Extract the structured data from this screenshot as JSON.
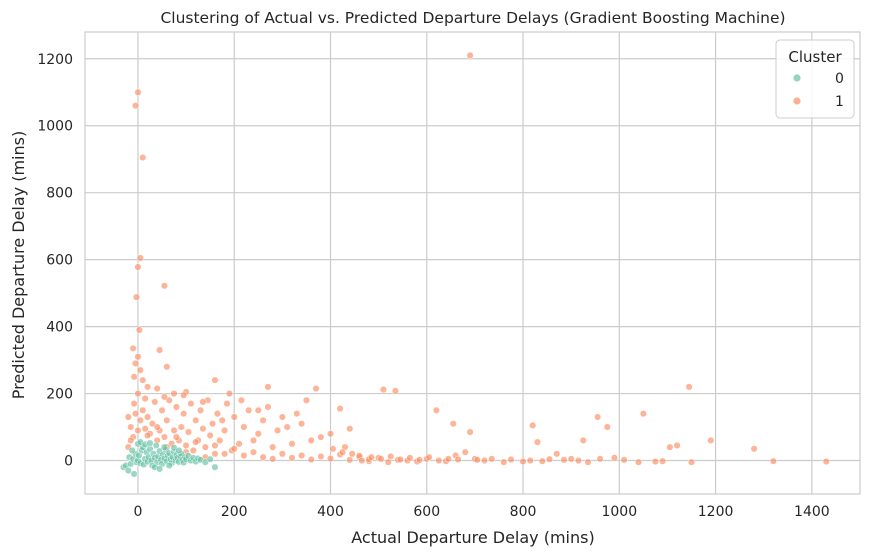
{
  "chart_data": {
    "type": "scatter",
    "title": "Clustering of Actual vs. Predicted Departure Delays (Gradient Boosting Machine)",
    "xlabel": "Actual Departure Delay (mins)",
    "ylabel": "Predicted Departure Delay (mins)",
    "xlim": [
      -110,
      1500
    ],
    "ylim": [
      -100,
      1280
    ],
    "xticks": [
      "0",
      "200",
      "400",
      "600",
      "800",
      "1000",
      "1200",
      "1400"
    ],
    "xtick_values": [
      0,
      200,
      400,
      600,
      800,
      1000,
      1200,
      1400
    ],
    "yticks": [
      "0",
      "200",
      "400",
      "600",
      "800",
      "1000",
      "1200"
    ],
    "ytick_values": [
      0,
      200,
      400,
      600,
      800,
      1000,
      1200
    ],
    "grid": true,
    "legend": {
      "title": "Cluster",
      "placement": "top-right"
    },
    "series": [
      {
        "name": "0",
        "color": "#66c2a5",
        "points": [
          [
            -30,
            -20
          ],
          [
            -25,
            -15
          ],
          [
            -20,
            -30
          ],
          [
            -18,
            10
          ],
          [
            -15,
            -10
          ],
          [
            -10,
            5
          ],
          [
            -8,
            -40
          ],
          [
            -5,
            20
          ],
          [
            -3,
            -5
          ],
          [
            0,
            0
          ],
          [
            2,
            15
          ],
          [
            5,
            -8
          ],
          [
            8,
            30
          ],
          [
            10,
            40
          ],
          [
            12,
            -12
          ],
          [
            15,
            5
          ],
          [
            18,
            25
          ],
          [
            20,
            -3
          ],
          [
            22,
            10
          ],
          [
            25,
            35
          ],
          [
            28,
            0
          ],
          [
            30,
            -15
          ],
          [
            32,
            20
          ],
          [
            35,
            8
          ],
          [
            38,
            45
          ],
          [
            40,
            -5
          ],
          [
            42,
            12
          ],
          [
            45,
            28
          ],
          [
            48,
            2
          ],
          [
            50,
            -10
          ],
          [
            52,
            18
          ],
          [
            55,
            6
          ],
          [
            58,
            32
          ],
          [
            60,
            -2
          ],
          [
            62,
            14
          ],
          [
            65,
            22
          ],
          [
            68,
            4
          ],
          [
            70,
            -8
          ],
          [
            72,
            10
          ],
          [
            75,
            26
          ],
          [
            78,
            0
          ],
          [
            80,
            16
          ],
          [
            82,
            8
          ],
          [
            85,
            -4
          ],
          [
            88,
            12
          ],
          [
            90,
            20
          ],
          [
            92,
            2
          ],
          [
            95,
            -6
          ],
          [
            98,
            10
          ],
          [
            100,
            4
          ],
          [
            105,
            14
          ],
          [
            110,
            0
          ],
          [
            115,
            8
          ],
          [
            120,
            -3
          ],
          [
            125,
            6
          ],
          [
            130,
            2
          ],
          [
            140,
            -5
          ],
          [
            150,
            4
          ],
          [
            160,
            -20
          ],
          [
            0,
            50
          ],
          [
            5,
            55
          ],
          [
            -12,
            30
          ],
          [
            15,
            48
          ],
          [
            25,
            52
          ],
          [
            35,
            -20
          ],
          [
            45,
            -25
          ],
          [
            55,
            40
          ],
          [
            65,
            -15
          ],
          [
            75,
            38
          ],
          [
            85,
            30
          ]
        ]
      },
      {
        "name": "1",
        "color": "#fc8d62",
        "points": [
          [
            690,
            1210
          ],
          [
            0,
            1100
          ],
          [
            -5,
            1060
          ],
          [
            10,
            905
          ],
          [
            5,
            605
          ],
          [
            0,
            578
          ],
          [
            -3,
            488
          ],
          [
            55,
            522
          ],
          [
            3,
            390
          ],
          [
            -10,
            335
          ],
          [
            45,
            330
          ],
          [
            0,
            310
          ],
          [
            -5,
            290
          ],
          [
            5,
            270
          ],
          [
            10,
            240
          ],
          [
            -8,
            250
          ],
          [
            60,
            280
          ],
          [
            20,
            220
          ],
          [
            40,
            215
          ],
          [
            75,
            200
          ],
          [
            100,
            205
          ],
          [
            160,
            240
          ],
          [
            190,
            200
          ],
          [
            270,
            220
          ],
          [
            370,
            215
          ],
          [
            510,
            212
          ],
          [
            535,
            208
          ],
          [
            1145,
            220
          ],
          [
            620,
            150
          ],
          [
            655,
            110
          ],
          [
            690,
            85
          ],
          [
            820,
            105
          ],
          [
            830,
            55
          ],
          [
            925,
            60
          ],
          [
            955,
            130
          ],
          [
            975,
            100
          ],
          [
            1050,
            140
          ],
          [
            1190,
            60
          ],
          [
            1280,
            35
          ],
          [
            1320,
            -2
          ],
          [
            1430,
            -3
          ],
          [
            1150,
            -5
          ],
          [
            1090,
            -2
          ],
          [
            1040,
            -5
          ],
          [
            1120,
            45
          ],
          [
            1105,
            40
          ],
          [
            1075,
            -3
          ],
          [
            935,
            -5
          ],
          [
            900,
            5
          ],
          [
            870,
            20
          ],
          [
            840,
            -2
          ],
          [
            800,
            -3
          ],
          [
            760,
            -5
          ],
          [
            720,
            0
          ],
          [
            700,
            5
          ],
          [
            680,
            25
          ],
          [
            660,
            15
          ],
          [
            640,
            -2
          ],
          [
            600,
            5
          ],
          [
            580,
            -3
          ],
          [
            560,
            0
          ],
          [
            540,
            2
          ],
          [
            520,
            -5
          ],
          [
            500,
            8
          ],
          [
            480,
            -2
          ],
          [
            460,
            10
          ],
          [
            440,
            95
          ],
          [
            430,
            40
          ],
          [
            420,
            155
          ],
          [
            400,
            80
          ],
          [
            380,
            70
          ],
          [
            360,
            60
          ],
          [
            350,
            180
          ],
          [
            340,
            110
          ],
          [
            320,
            50
          ],
          [
            300,
            130
          ],
          [
            290,
            90
          ],
          [
            280,
            40
          ],
          [
            270,
            160
          ],
          [
            260,
            120
          ],
          [
            250,
            80
          ],
          [
            240,
            60
          ],
          [
            230,
            150
          ],
          [
            220,
            100
          ],
          [
            210,
            50
          ],
          [
            200,
            130
          ],
          [
            195,
            30
          ],
          [
            185,
            170
          ],
          [
            180,
            90
          ],
          [
            170,
            60
          ],
          [
            165,
            140
          ],
          [
            160,
            20
          ],
          [
            155,
            110
          ],
          [
            150,
            75
          ],
          [
            145,
            180
          ],
          [
            140,
            40
          ],
          [
            135,
            95
          ],
          [
            130,
            150
          ],
          [
            125,
            60
          ],
          [
            120,
            120
          ],
          [
            115,
            30
          ],
          [
            110,
            170
          ],
          [
            105,
            85
          ],
          [
            100,
            45
          ],
          [
            95,
            140
          ],
          [
            90,
            100
          ],
          [
            85,
            60
          ],
          [
            80,
            160
          ],
          [
            75,
            90
          ],
          [
            70,
            50
          ],
          [
            65,
            180
          ],
          [
            60,
            120
          ],
          [
            55,
            70
          ],
          [
            50,
            150
          ],
          [
            45,
            90
          ],
          [
            40,
            60
          ],
          [
            35,
            175
          ],
          [
            30,
            110
          ],
          [
            25,
            80
          ],
          [
            20,
            130
          ],
          [
            15,
            95
          ],
          [
            10,
            150
          ],
          [
            5,
            120
          ],
          [
            0,
            90
          ],
          [
            -5,
            140
          ],
          [
            -10,
            70
          ],
          [
            -15,
            100
          ],
          [
            -20,
            130
          ],
          [
            260,
            10
          ],
          [
            280,
            5
          ],
          [
            300,
            20
          ],
          [
            320,
            8
          ],
          [
            340,
            15
          ],
          [
            360,
            3
          ],
          [
            380,
            12
          ],
          [
            400,
            6
          ],
          [
            420,
            18
          ],
          [
            440,
            2
          ],
          [
            460,
            14
          ],
          [
            480,
            4
          ],
          [
            240,
            25
          ],
          [
            220,
            15
          ],
          [
            200,
            35
          ],
          [
            180,
            20
          ],
          [
            160,
            45
          ],
          [
            140,
            10
          ],
          [
            120,
            55
          ],
          [
            100,
            25
          ],
          [
            80,
            70
          ],
          [
            60,
            40
          ],
          [
            40,
            100
          ],
          [
            20,
            75
          ],
          [
            310,
            100
          ],
          [
            330,
            140
          ],
          [
            250,
            150
          ],
          [
            215,
            180
          ],
          [
            175,
            120
          ],
          [
            135,
            175
          ],
          [
            95,
            195
          ],
          [
            55,
            190
          ],
          [
            15,
            185
          ],
          [
            0,
            200
          ],
          [
            -8,
            170
          ],
          [
            -15,
            60
          ],
          [
            -20,
            40
          ],
          [
            405,
            35
          ],
          [
            425,
            25
          ],
          [
            445,
            20
          ],
          [
            465,
            0
          ],
          [
            485,
            10
          ],
          [
            505,
            5
          ],
          [
            525,
            12
          ],
          [
            545,
            3
          ],
          [
            565,
            8
          ],
          [
            585,
            2
          ],
          [
            605,
            10
          ],
          [
            625,
            0
          ],
          [
            645,
            5
          ],
          [
            665,
            3
          ],
          [
            705,
            2
          ],
          [
            735,
            5
          ],
          [
            775,
            3
          ],
          [
            815,
            0
          ],
          [
            855,
            4
          ],
          [
            885,
            2
          ],
          [
            915,
            0
          ],
          [
            960,
            5
          ],
          [
            990,
            8
          ],
          [
            1010,
            2
          ]
        ]
      }
    ]
  }
}
